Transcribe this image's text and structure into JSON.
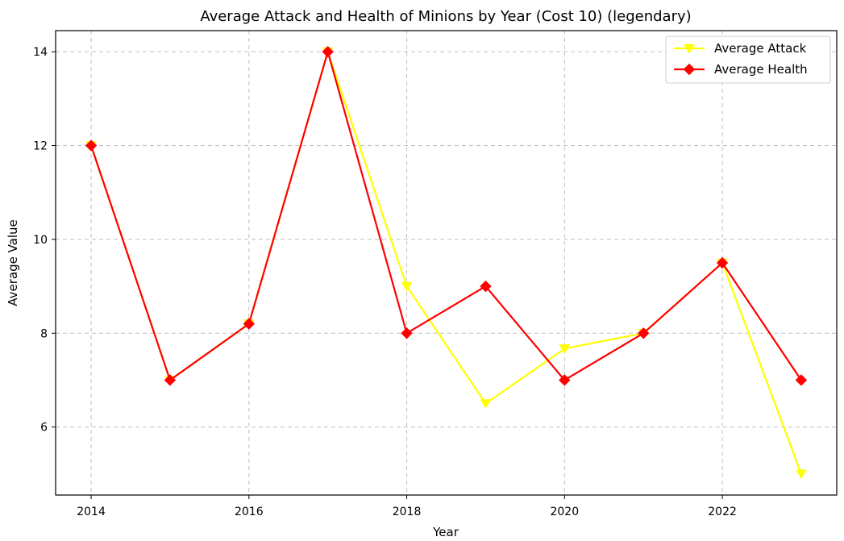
{
  "chart_data": {
    "type": "line",
    "title": "Average Attack and Health of Minions by Year (Cost 10) (legendary)",
    "xlabel": "Year",
    "ylabel": "Average Value",
    "x": [
      2014,
      2015,
      2016,
      2017,
      2018,
      2019,
      2020,
      2021,
      2022,
      2023
    ],
    "xticks": [
      2014,
      2016,
      2018,
      2020,
      2022
    ],
    "yticks": [
      6,
      8,
      10,
      12,
      14
    ],
    "xlim": [
      2013.55,
      2023.45
    ],
    "ylim": [
      4.55,
      14.45
    ],
    "grid": true,
    "legend_position": "top-right",
    "series": [
      {
        "name": "Average Attack",
        "color": "#ffff00",
        "marker": "triangle-down",
        "values": [
          12,
          7,
          8.2,
          14,
          9,
          6.5,
          7.67,
          8,
          9.5,
          5
        ]
      },
      {
        "name": "Average Health",
        "color": "#ff0000",
        "marker": "diamond",
        "values": [
          12,
          7,
          8.2,
          14,
          8,
          9,
          7,
          8,
          9.5,
          7
        ]
      }
    ]
  }
}
